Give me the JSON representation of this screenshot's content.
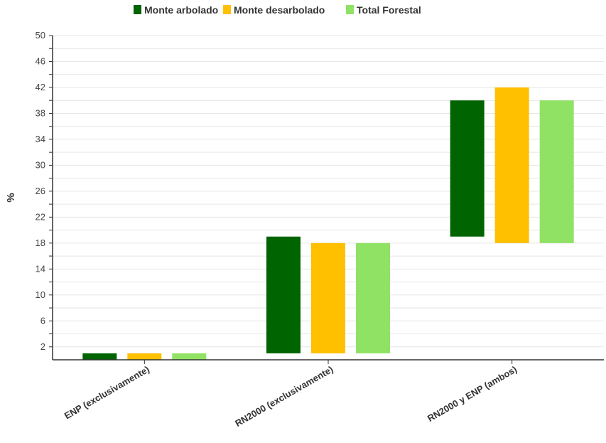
{
  "chart_data": {
    "type": "bar",
    "subtype": "floating-range",
    "title": "",
    "xlabel": "",
    "ylabel": "%",
    "ylim": [
      0,
      50
    ],
    "yticks": [
      2,
      6,
      10,
      14,
      18,
      22,
      26,
      30,
      34,
      38,
      42,
      46,
      50
    ],
    "grid": true,
    "legend_position": "top-center",
    "categories": [
      "ENP (exclusivamente)",
      "RN2000 (exclusivamente)",
      "RN2000 y ENP (ambos)"
    ],
    "series": [
      {
        "name": "Monte arbolado",
        "color": "#006400",
        "ranges": [
          [
            0,
            1
          ],
          [
            1,
            19
          ],
          [
            19,
            40
          ]
        ]
      },
      {
        "name": "Monte desarbolado",
        "color": "#FFC000",
        "ranges": [
          [
            0,
            1
          ],
          [
            1,
            18
          ],
          [
            18,
            42
          ]
        ]
      },
      {
        "name": "Total Forestal",
        "color": "#90E264",
        "ranges": [
          [
            0,
            1
          ],
          [
            1,
            18
          ],
          [
            18,
            40
          ]
        ]
      }
    ]
  }
}
